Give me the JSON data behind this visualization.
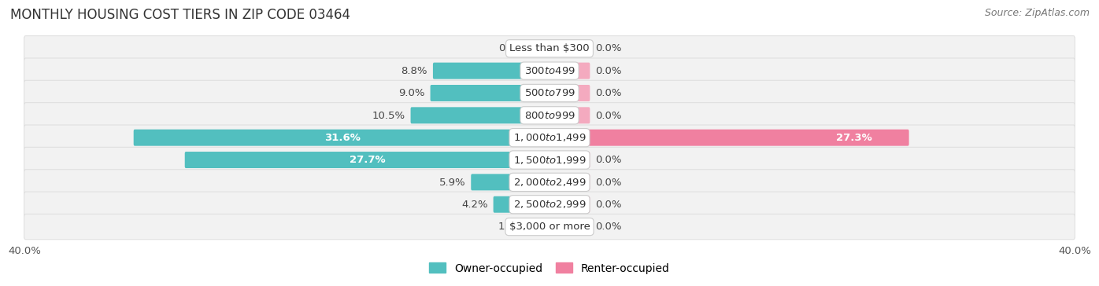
{
  "title": "MONTHLY HOUSING COST TIERS IN ZIP CODE 03464",
  "source": "Source: ZipAtlas.com",
  "categories": [
    "Less than $300",
    "$300 to $499",
    "$500 to $799",
    "$800 to $999",
    "$1,000 to $1,499",
    "$1,500 to $1,999",
    "$2,000 to $2,499",
    "$2,500 to $2,999",
    "$3,000 or more"
  ],
  "owner_values": [
    0.85,
    8.8,
    9.0,
    10.5,
    31.6,
    27.7,
    5.9,
    4.2,
    1.4
  ],
  "renter_values": [
    0.0,
    0.0,
    0.0,
    0.0,
    27.3,
    0.0,
    0.0,
    0.0,
    0.0
  ],
  "renter_stub": 3.0,
  "owner_color": "#52BFBF",
  "renter_color": "#F080A0",
  "renter_stub_color": "#F4AABF",
  "row_bg_color": "#F2F2F2",
  "row_border_color": "#E0E0E0",
  "axis_label": "40.0%",
  "xlim": 40.0,
  "title_fontsize": 12,
  "source_fontsize": 9,
  "bar_label_fontsize": 9.5,
  "category_fontsize": 9.5,
  "legend_fontsize": 10,
  "axis_fontsize": 9.5,
  "background_color": "#FFFFFF"
}
